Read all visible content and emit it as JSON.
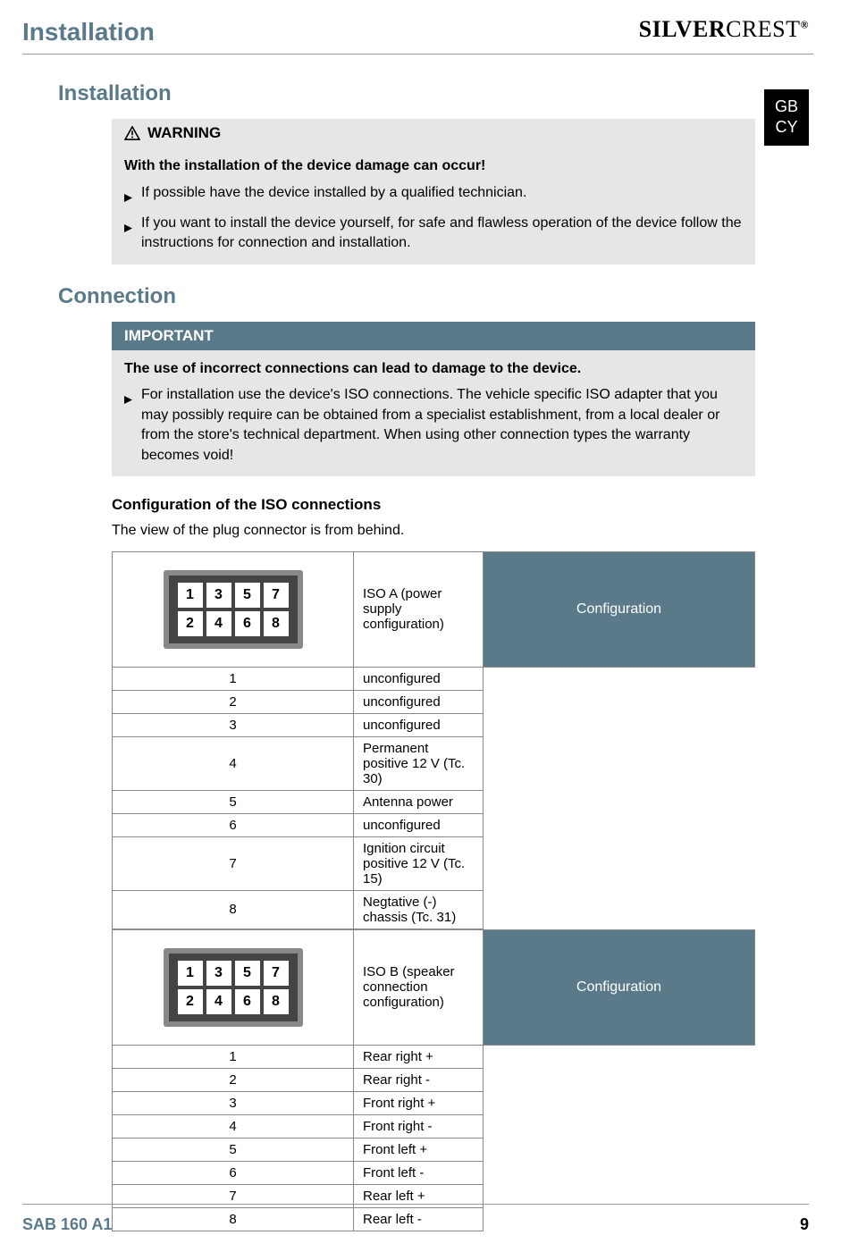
{
  "colors": {
    "accent": "#5a7a8a",
    "box_bg": "#e6e6e6",
    "border": "#888888"
  },
  "header": {
    "title": "Installation",
    "brand_part1": "SILVER",
    "brand_part2": "CREST",
    "brand_reg": "®"
  },
  "lang_badge": {
    "line1": "GB",
    "line2": "CY"
  },
  "installation": {
    "title": "Installation",
    "warning_label": "WARNING",
    "warning_bold": "With the installation of the device damage can occur!",
    "bullet1": "If possible have the device installed by a qualified technician.",
    "bullet2": "If you want to install the device yourself, for safe and flawless operation of the device follow the instructions for connection and installation."
  },
  "connection": {
    "title": "Connection",
    "important_label": "IMPORTANT",
    "important_bold": "The use of incorrect connections can lead to damage to the device.",
    "bullet1": "For installation use the device's ISO connections. The vehicle specific ISO adapter that you may possibly require can be obtained from a specialist establishment, from a local dealer or from the store's technical department. When using other connection types the warranty becomes void!"
  },
  "iso_config": {
    "title": "Configuration of the ISO connections",
    "note": "The view of the plug connector is from behind.",
    "config_header": "Configuration",
    "connector_pins": [
      "1",
      "3",
      "5",
      "7",
      "2",
      "4",
      "6",
      "8"
    ],
    "iso_a": {
      "label": "ISO A (power supply configuration)",
      "rows": [
        {
          "n": "1",
          "v": "unconfigured"
        },
        {
          "n": "2",
          "v": "unconfigured"
        },
        {
          "n": "3",
          "v": "unconfigured"
        },
        {
          "n": "4",
          "v": "Permanent positive 12 V (Tc. 30)"
        },
        {
          "n": "5",
          "v": "Antenna power"
        },
        {
          "n": "6",
          "v": "unconfigured"
        },
        {
          "n": "7",
          "v": "Ignition circuit positive 12 V (Tc. 15)"
        },
        {
          "n": "8",
          "v": "Negtative (-) chassis (Tc. 31)"
        }
      ]
    },
    "iso_b": {
      "label": "ISO B (speaker connection configuration)",
      "rows": [
        {
          "n": "1",
          "v": "Rear right +"
        },
        {
          "n": "2",
          "v": "Rear right -"
        },
        {
          "n": "3",
          "v": "Front right +"
        },
        {
          "n": "4",
          "v": "Front right -"
        },
        {
          "n": "5",
          "v": "Front left +"
        },
        {
          "n": "6",
          "v": "Front left -"
        },
        {
          "n": "7",
          "v": "Rear left +"
        },
        {
          "n": "8",
          "v": "Rear left -"
        }
      ]
    }
  },
  "footer": {
    "model": "SAB 160 A1",
    "page": "9"
  }
}
